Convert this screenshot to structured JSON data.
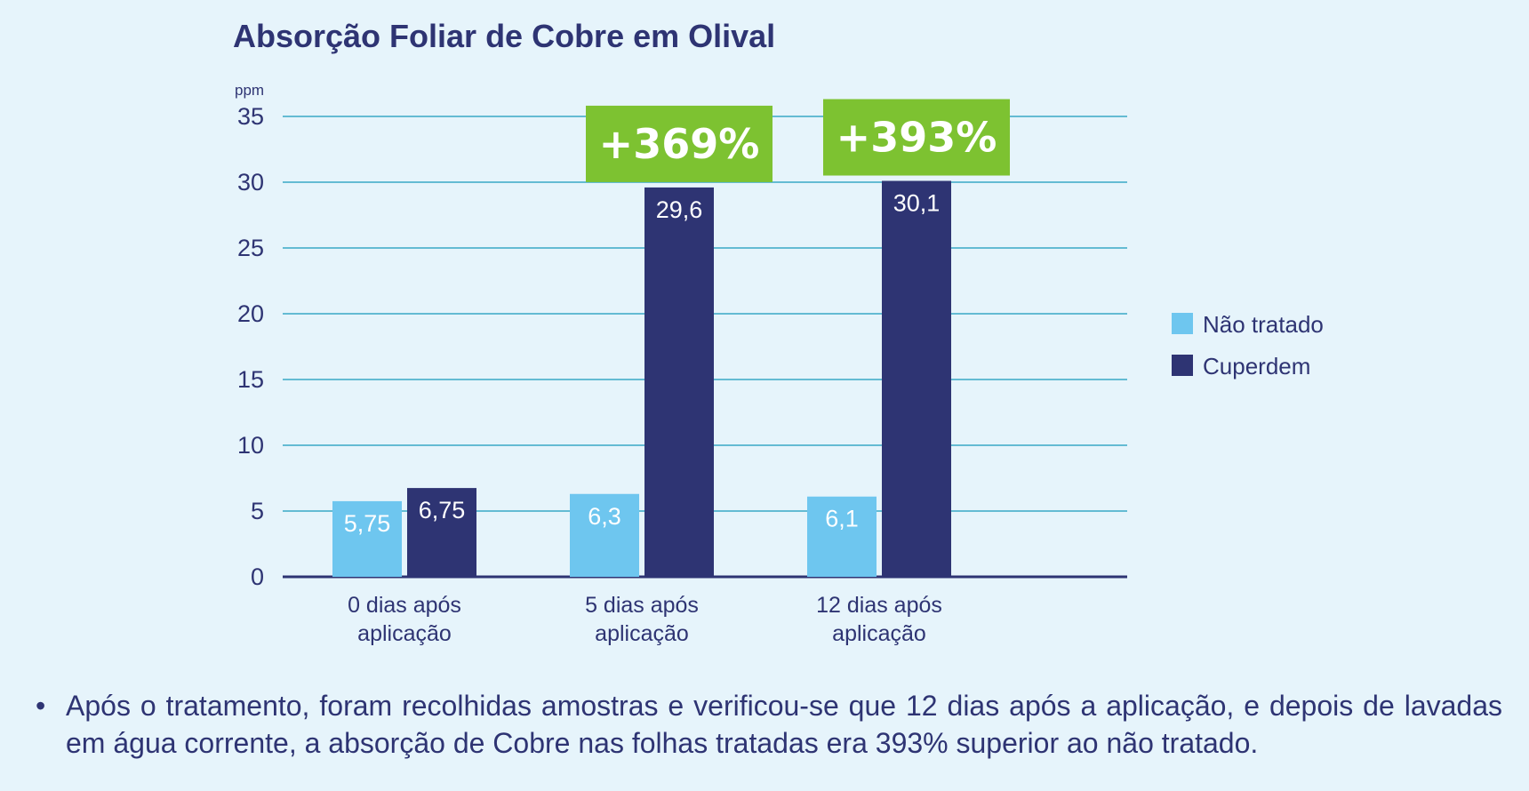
{
  "chart_data": {
    "type": "bar",
    "title": "Absorção Foliar de Cobre em Olival",
    "unit_label": "ppm",
    "ylim": [
      0,
      35
    ],
    "yticks": [
      0,
      5,
      10,
      15,
      20,
      25,
      30,
      35
    ],
    "grid": true,
    "categories": [
      [
        "0 dias após",
        "aplicação"
      ],
      [
        "5 dias após",
        "aplicação"
      ],
      [
        "12 dias após",
        "aplicação"
      ]
    ],
    "series": [
      {
        "name": "Não tratado",
        "color": "#6ec6ef",
        "values": [
          5.75,
          6.3,
          6.1
        ],
        "labels": [
          "5,75",
          "6,3",
          "6,1"
        ]
      },
      {
        "name": "Cuperdem",
        "color": "#2e3473",
        "values": [
          6.75,
          29.6,
          30.1
        ],
        "labels": [
          "6,75",
          "29,6",
          "30,1"
        ]
      }
    ],
    "annotations": [
      {
        "category_index": 1,
        "text": "+369%",
        "color": "#7dc231"
      },
      {
        "category_index": 2,
        "text": "+393%",
        "color": "#7dc231"
      }
    ],
    "legend_position": "right"
  },
  "note": {
    "bullet": "•",
    "text": "Após o tratamento, foram recolhidas amostras e verificou-se que 12 dias após a aplicação, e depois de lavadas em água corrente, a absorção de Cobre nas folhas tratadas era 393% superior ao não tratado."
  }
}
